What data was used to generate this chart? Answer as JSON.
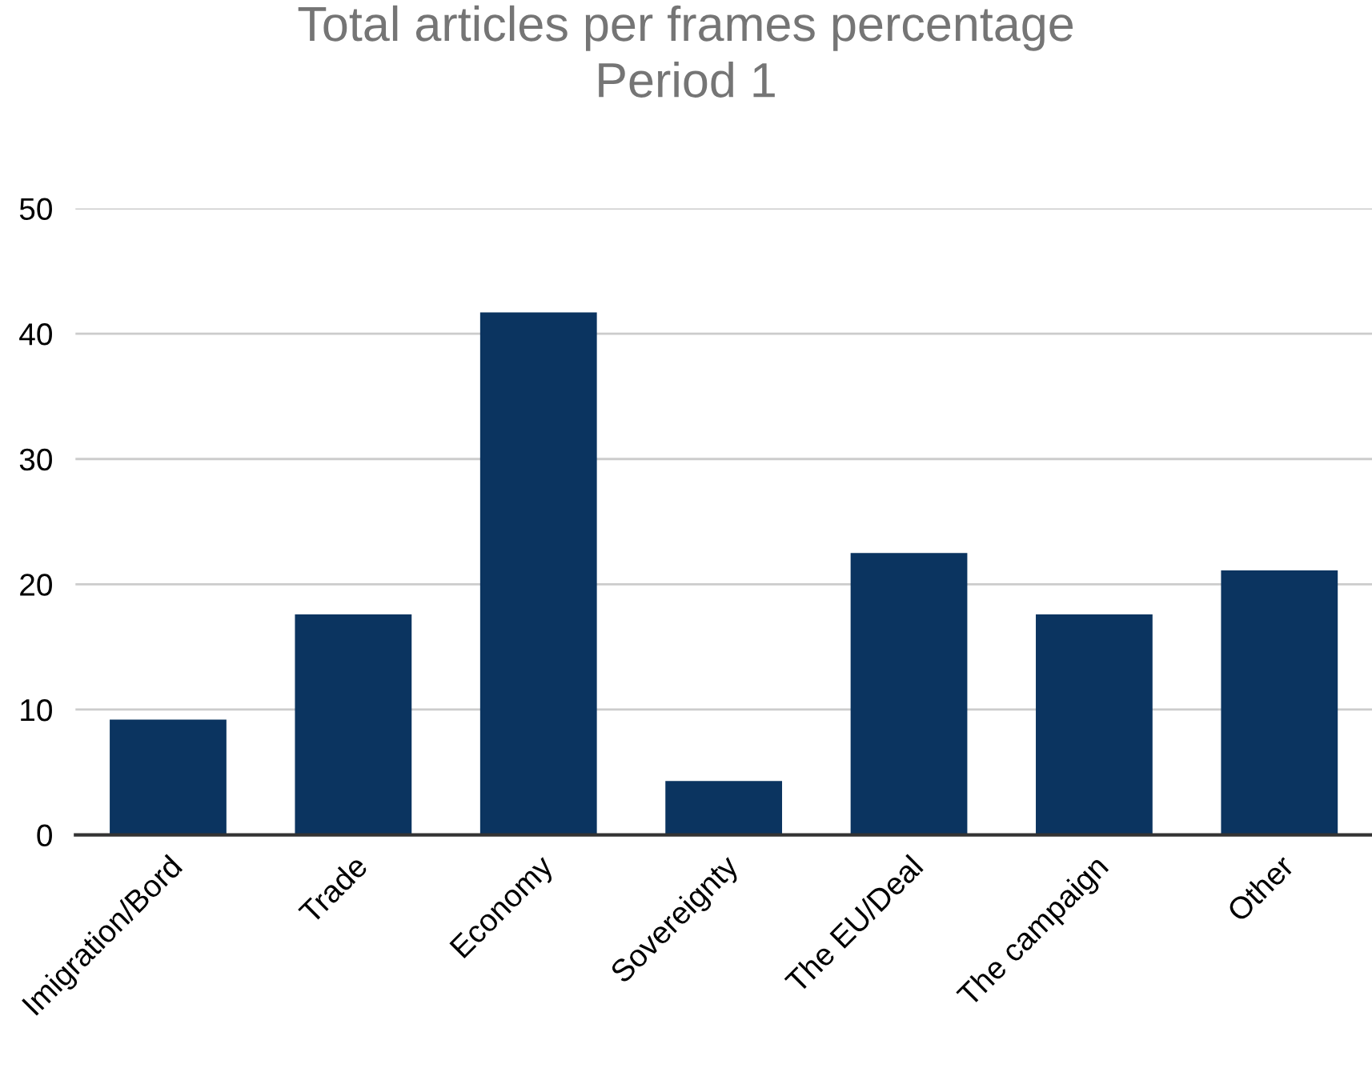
{
  "chart_data": {
    "type": "bar",
    "title": "Total articles per frames percentage\nPeriod 1",
    "categories": [
      "Imigration/Bord",
      "Trade",
      "Economy",
      "Sovereignty",
      "The EU/Deal",
      "The campaign",
      "Other"
    ],
    "values": [
      9.2,
      17.6,
      41.7,
      4.3,
      22.5,
      17.6,
      21.1
    ],
    "color": "#0b3460",
    "ylim": [
      0,
      50
    ],
    "yticks": [
      0,
      10,
      20,
      30,
      40,
      50
    ],
    "grid": "y"
  }
}
